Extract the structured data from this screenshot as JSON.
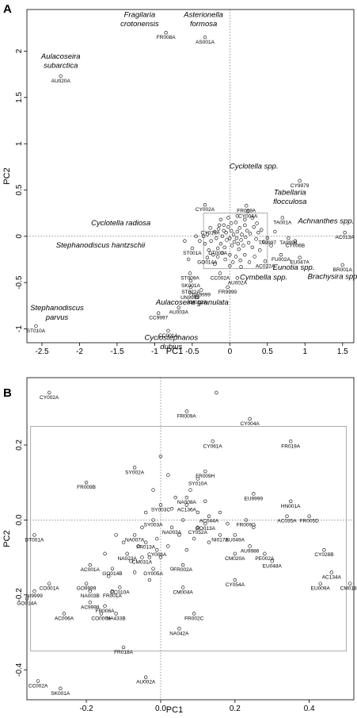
{
  "chart_data": [
    {
      "type": "scatter",
      "panel_label": "A",
      "xlabel": "PC1",
      "ylabel": "PC2",
      "xlim": [
        -2.7,
        1.65
      ],
      "ylim": [
        -1.15,
        2.45
      ],
      "xticks": [
        -2.5,
        -2,
        -1.5,
        -1,
        -0.5,
        0,
        0.5,
        1,
        1.5
      ],
      "xtick_labels": [
        "-2.5",
        "-2",
        "-1.5",
        "-1",
        "-0.5",
        "0",
        "0.5",
        "1",
        "1.5"
      ],
      "yticks": [
        -1,
        -0.5,
        0,
        0.5,
        1,
        1.5,
        2
      ],
      "ytick_labels": [
        "-1",
        "-0.5",
        "0",
        "0.5",
        "1",
        "1.5",
        "2"
      ],
      "zero_lines": true,
      "inset_box": {
        "x": [
          -0.35,
          0.5
        ],
        "y": [
          -0.35,
          0.25
        ]
      },
      "points": [
        {
          "label": "FR008A",
          "x": -0.85,
          "y": 2.2
        },
        {
          "label": "AS001A",
          "x": -0.33,
          "y": 2.15
        },
        {
          "label": "AU020A",
          "x": -2.25,
          "y": 1.73
        },
        {
          "label": "CY9979",
          "x": 0.93,
          "y": 0.6
        },
        {
          "label": "CY002A",
          "x": -0.33,
          "y": 0.34
        },
        {
          "label": "FR009A",
          "x": 0.22,
          "y": 0.33
        },
        {
          "label": "CY004A",
          "x": 0.24,
          "y": 0.27
        },
        {
          "label": "TA001A",
          "x": 0.7,
          "y": 0.2
        },
        {
          "label": "CY019A",
          "x": -0.26,
          "y": 0.09
        },
        {
          "label": "AC013A",
          "x": 1.53,
          "y": 0.04
        },
        {
          "label": "TA9997",
          "x": 0.5,
          "y": -0.02
        },
        {
          "label": "TA9998",
          "x": 0.78,
          "y": -0.02
        },
        {
          "label": "CY006B",
          "x": 0.87,
          "y": -0.05
        },
        {
          "label": "ST001A",
          "x": -0.5,
          "y": -0.13
        },
        {
          "label": "DT002A",
          "x": -0.16,
          "y": -0.13
        },
        {
          "label": "FU002A",
          "x": 0.68,
          "y": -0.2
        },
        {
          "label": "EU047A",
          "x": 0.93,
          "y": -0.23
        },
        {
          "label": "GO014A",
          "x": -0.3,
          "y": -0.23
        },
        {
          "label": "AC022A",
          "x": 0.47,
          "y": -0.27
        },
        {
          "label": "BR001A",
          "x": 1.5,
          "y": -0.31
        },
        {
          "label": "ST009A",
          "x": -0.53,
          "y": -0.4
        },
        {
          "label": "CC002A",
          "x": -0.13,
          "y": -0.4
        },
        {
          "label": "AU002A",
          "x": 0.1,
          "y": -0.45
        },
        {
          "label": "SK001A",
          "x": -0.52,
          "y": -0.48
        },
        {
          "label": "ST022A",
          "x": -0.52,
          "y": -0.55
        },
        {
          "label": "FR9999",
          "x": -0.03,
          "y": -0.55
        },
        {
          "label": "NA9999",
          "x": -0.38,
          "y": -0.58
        },
        {
          "label": "UN9999",
          "x": -0.53,
          "y": -0.61
        },
        {
          "label": "AM012A",
          "x": -0.44,
          "y": -0.66
        },
        {
          "label": "AU003A",
          "x": -0.68,
          "y": -0.77
        },
        {
          "label": "CC9997",
          "x": -0.95,
          "y": -0.83
        },
        {
          "label": "CC001A",
          "x": -0.82,
          "y": -1.02
        },
        {
          "label": "ST010A",
          "x": -2.58,
          "y": -0.97
        }
      ],
      "cluster": [
        [
          -0.3,
          0.02
        ],
        [
          -0.25,
          -0.05
        ],
        [
          -0.2,
          0.05
        ],
        [
          -0.18,
          -0.02
        ],
        [
          -0.15,
          0.08
        ],
        [
          -0.12,
          -0.08
        ],
        [
          -0.1,
          0.0
        ],
        [
          -0.08,
          0.12
        ],
        [
          -0.07,
          -0.12
        ],
        [
          -0.05,
          0.04
        ],
        [
          -0.04,
          -0.04
        ],
        [
          -0.02,
          0.1
        ],
        [
          0.0,
          -0.02
        ],
        [
          0.02,
          0.06
        ],
        [
          0.03,
          -0.1
        ],
        [
          0.05,
          0.02
        ],
        [
          0.06,
          -0.06
        ],
        [
          0.08,
          0.15
        ],
        [
          0.09,
          -0.02
        ],
        [
          0.1,
          0.05
        ],
        [
          0.12,
          -0.14
        ],
        [
          0.13,
          0.09
        ],
        [
          0.15,
          -0.04
        ],
        [
          0.16,
          0.02
        ],
        [
          0.18,
          -0.1
        ],
        [
          0.2,
          0.12
        ],
        [
          0.21,
          -0.01
        ],
        [
          0.23,
          0.06
        ],
        [
          0.25,
          -0.07
        ],
        [
          0.27,
          0.03
        ],
        [
          0.3,
          -0.12
        ],
        [
          0.32,
          0.1
        ],
        [
          0.35,
          -0.03
        ],
        [
          0.38,
          0.04
        ],
        [
          0.4,
          -0.15
        ],
        [
          0.42,
          0.07
        ],
        [
          0.45,
          -0.06
        ],
        [
          -0.28,
          -0.15
        ],
        [
          -0.22,
          -0.2
        ],
        [
          -0.16,
          -0.22
        ],
        [
          -0.1,
          -0.18
        ],
        [
          -0.06,
          -0.25
        ],
        [
          0.0,
          -0.2
        ],
        [
          0.04,
          -0.28
        ],
        [
          0.08,
          -0.22
        ],
        [
          0.14,
          -0.26
        ],
        [
          0.2,
          -0.2
        ],
        [
          0.26,
          -0.28
        ],
        [
          0.33,
          -0.22
        ],
        [
          -0.33,
          -0.08
        ],
        [
          -0.35,
          0.0
        ],
        [
          -0.12,
          0.18
        ],
        [
          -0.02,
          0.2
        ],
        [
          0.1,
          0.22
        ],
        [
          0.2,
          0.18
        ],
        [
          0.3,
          0.2
        ],
        [
          -0.2,
          -0.3
        ],
        [
          0.0,
          -0.32
        ],
        [
          0.15,
          -0.33
        ],
        [
          -0.45,
          0.0
        ],
        [
          -0.4,
          -0.05
        ],
        [
          0.55,
          -0.1
        ],
        [
          0.6,
          0.05
        ],
        [
          -0.55,
          -0.25
        ],
        [
          -0.6,
          -0.05
        ],
        [
          -0.08,
          0.06
        ],
        [
          0.02,
          0.14
        ],
        [
          0.11,
          -0.08
        ],
        [
          -0.14,
          0.12
        ],
        [
          0.36,
          0.14
        ]
      ],
      "annotations": [
        {
          "text": "Fragilaria",
          "x": -1.2,
          "y": 2.37
        },
        {
          "text": "crotonensis",
          "x": -1.2,
          "y": 2.27
        },
        {
          "text": "Asterionella",
          "x": -0.35,
          "y": 2.37
        },
        {
          "text": "formosa",
          "x": -0.35,
          "y": 2.27
        },
        {
          "text": "Aulacoseira",
          "x": -2.25,
          "y": 1.92
        },
        {
          "text": "subarctica",
          "x": -2.25,
          "y": 1.82
        },
        {
          "text": "Cyclotella spp.",
          "x": 0.32,
          "y": 0.73
        },
        {
          "text": "Tabellaria",
          "x": 0.8,
          "y": 0.45
        },
        {
          "text": "flocculosa",
          "x": 0.8,
          "y": 0.35
        },
        {
          "text": "Achnanthes spp.",
          "x": 1.28,
          "y": 0.14
        },
        {
          "text": "Cyclotella radiosa",
          "x": -1.45,
          "y": 0.12
        },
        {
          "text": "Stephanodiscus hantzschii",
          "x": -1.72,
          "y": -0.12
        },
        {
          "text": "Eunotia spp.",
          "x": 0.85,
          "y": -0.36
        },
        {
          "text": "Cymbella spp.",
          "x": 0.45,
          "y": -0.47
        },
        {
          "text": "Brachysira spp.",
          "x": 1.38,
          "y": -0.46
        },
        {
          "text": "Aulacoseira granulata",
          "x": -0.5,
          "y": -0.74
        },
        {
          "text": "Stephanodiscus",
          "x": -2.3,
          "y": -0.8
        },
        {
          "text": "parvus",
          "x": -2.3,
          "y": -0.9
        },
        {
          "text": "Cyclostephanos",
          "x": -0.78,
          "y": -1.12
        },
        {
          "text": "dubius",
          "x": -0.78,
          "y": -1.22
        }
      ]
    },
    {
      "type": "scatter",
      "panel_label": "B",
      "xlabel": "PC1",
      "ylabel": "PC2",
      "xlim": [
        -0.36,
        0.52
      ],
      "ylim": [
        -0.48,
        0.38
      ],
      "xticks": [
        -0.2,
        0,
        0.2,
        0.4
      ],
      "xtick_labels": [
        "-0.2",
        "0.0",
        "0.2",
        "0.4"
      ],
      "yticks": [
        -0.4,
        -0.2,
        0.0,
        0.2
      ],
      "ytick_labels": [
        "-0.4",
        "-0.2",
        "0.0",
        "0.2"
      ],
      "zero_lines": true,
      "inset_box": {
        "x": [
          -0.35,
          0.5
        ],
        "y": [
          -0.35,
          0.25
        ]
      },
      "points": [
        {
          "label": "CY002A",
          "x": -0.3,
          "y": 0.34
        },
        {
          "label": "",
          "x": 0.15,
          "y": 0.34
        },
        {
          "label": "FR009A",
          "x": 0.07,
          "y": 0.29
        },
        {
          "label": "CY004A",
          "x": 0.24,
          "y": 0.27
        },
        {
          "label": "CY061A",
          "x": 0.14,
          "y": 0.21
        },
        {
          "label": "FR019A",
          "x": 0.35,
          "y": 0.21
        },
        {
          "label": "",
          "x": 0.0,
          "y": 0.17
        },
        {
          "label": "SY002A",
          "x": -0.07,
          "y": 0.14
        },
        {
          "label": "FR009H",
          "x": 0.12,
          "y": 0.13
        },
        {
          "label": "SY010A",
          "x": 0.1,
          "y": 0.11
        },
        {
          "label": "FR009B",
          "x": -0.2,
          "y": 0.1
        },
        {
          "label": "EU9999",
          "x": 0.25,
          "y": 0.07
        },
        {
          "label": "NA008A",
          "x": 0.07,
          "y": 0.06
        },
        {
          "label": "SY003C",
          "x": 0.0,
          "y": 0.04
        },
        {
          "label": "AC136A",
          "x": 0.07,
          "y": 0.04
        },
        {
          "label": "HN001A",
          "x": 0.35,
          "y": 0.05
        },
        {
          "label": "AC035A",
          "x": 0.34,
          "y": 0.01
        },
        {
          "label": "FR005D",
          "x": 0.4,
          "y": 0.01
        },
        {
          "label": "AC044A",
          "x": 0.13,
          "y": 0.01
        },
        {
          "label": "SY003A",
          "x": -0.02,
          "y": 0.0
        },
        {
          "label": "GO013A",
          "x": 0.12,
          "y": -0.01
        },
        {
          "label": "FR009G",
          "x": 0.23,
          "y": 0.0
        },
        {
          "label": "NA003A",
          "x": 0.03,
          "y": -0.02
        },
        {
          "label": "CY052A",
          "x": 0.1,
          "y": -0.02
        },
        {
          "label": "NA007A",
          "x": -0.07,
          "y": -0.04
        },
        {
          "label": "NI017A",
          "x": 0.16,
          "y": -0.04
        },
        {
          "label": "EU049A",
          "x": 0.2,
          "y": -0.04
        },
        {
          "label": "FR013A",
          "x": -0.04,
          "y": -0.06
        },
        {
          "label": "AU9986",
          "x": 0.24,
          "y": -0.07
        },
        {
          "label": "CY006A",
          "x": -0.01,
          "y": -0.08
        },
        {
          "label": "NA023A",
          "x": -0.09,
          "y": -0.09
        },
        {
          "label": "CM031A",
          "x": -0.05,
          "y": -0.1
        },
        {
          "label": "CM020A",
          "x": 0.2,
          "y": -0.09
        },
        {
          "label": "PE002A",
          "x": 0.28,
          "y": -0.09
        },
        {
          "label": "CY028B",
          "x": 0.44,
          "y": -0.08
        },
        {
          "label": "AC001A",
          "x": -0.19,
          "y": -0.12
        },
        {
          "label": "GO014B",
          "x": -0.13,
          "y": -0.13
        },
        {
          "label": "FR002A",
          "x": 0.06,
          "y": -0.12
        },
        {
          "label": "EU048A",
          "x": 0.3,
          "y": -0.11
        },
        {
          "label": "DT001A",
          "x": -0.34,
          "y": -0.04
        },
        {
          "label": "GY005A",
          "x": -0.02,
          "y": -0.13
        },
        {
          "label": "AC134A",
          "x": 0.46,
          "y": -0.14
        },
        {
          "label": "CO001A",
          "x": -0.3,
          "y": -0.17
        },
        {
          "label": "GO9999",
          "x": -0.2,
          "y": -0.17
        },
        {
          "label": "CC010A",
          "x": -0.11,
          "y": -0.18
        },
        {
          "label": "CM004A",
          "x": 0.06,
          "y": -0.18
        },
        {
          "label": "CY054A",
          "x": 0.2,
          "y": -0.16
        },
        {
          "label": "EU009A",
          "x": 0.43,
          "y": -0.17
        },
        {
          "label": "CM018A",
          "x": 0.51,
          "y": -0.17
        },
        {
          "label": "NI9999",
          "x": -0.34,
          "y": -0.19
        },
        {
          "label": "NA003B",
          "x": -0.19,
          "y": -0.19
        },
        {
          "label": "FR001A",
          "x": -0.13,
          "y": -0.19
        },
        {
          "label": "GO014A",
          "x": -0.36,
          "y": -0.21
        },
        {
          "label": "AC9999",
          "x": -0.19,
          "y": -0.22
        },
        {
          "label": "FR006A",
          "x": -0.15,
          "y": -0.23
        },
        {
          "label": "NA433B",
          "x": -0.12,
          "y": -0.25
        },
        {
          "label": "AC006A",
          "x": -0.26,
          "y": -0.25
        },
        {
          "label": "CO006A",
          "x": -0.16,
          "y": -0.25
        },
        {
          "label": "FR002C",
          "x": 0.09,
          "y": -0.25
        },
        {
          "label": "NA042A",
          "x": 0.05,
          "y": -0.29
        },
        {
          "label": "FR018A",
          "x": -0.1,
          "y": -0.34
        },
        {
          "label": "AU002A",
          "x": -0.04,
          "y": -0.42
        },
        {
          "label": "CC002A",
          "x": -0.33,
          "y": -0.43
        },
        {
          "label": "SK001A",
          "x": -0.27,
          "y": -0.45
        }
      ],
      "unlabeled": [
        [
          -0.05,
          -0.02
        ],
        [
          -0.04,
          0.02
        ],
        [
          -0.01,
          -0.05
        ],
        [
          0.03,
          0.03
        ],
        [
          0.06,
          0.0
        ],
        [
          -0.1,
          -0.06
        ],
        [
          0.02,
          -0.07
        ],
        [
          -0.08,
          -0.11
        ],
        [
          0.1,
          0.02
        ],
        [
          0.13,
          -0.06
        ],
        [
          0.05,
          -0.04
        ],
        [
          -0.03,
          -0.1
        ],
        [
          0.16,
          0.02
        ],
        [
          0.07,
          -0.08
        ],
        [
          -0.15,
          -0.09
        ],
        [
          0.0,
          -0.1
        ],
        [
          -0.06,
          -0.07
        ],
        [
          0.12,
          0.05
        ],
        [
          0.18,
          -0.01
        ],
        [
          -0.02,
          0.08
        ],
        [
          0.02,
          0.12
        ],
        [
          -0.12,
          -0.04
        ],
        [
          0.09,
          -0.05
        ],
        [
          0.04,
          0.06
        ],
        [
          -0.07,
          -0.14
        ],
        [
          0.03,
          -0.13
        ],
        [
          0.25,
          -0.02
        ],
        [
          -0.14,
          -0.15
        ],
        [
          0.08,
          0.08
        ],
        [
          -0.03,
          -0.16
        ]
      ]
    }
  ]
}
